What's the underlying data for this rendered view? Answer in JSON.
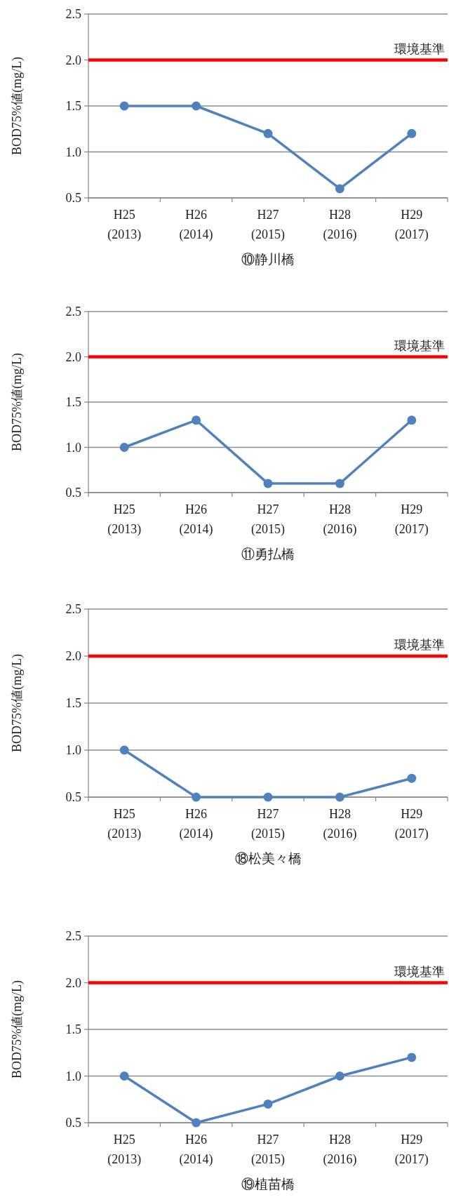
{
  "chart_data": [
    {
      "type": "line",
      "ylabel": "BOD75%値(mg/L)",
      "xlabel": "⑩静川橋",
      "categories": [
        "H25\n(2013)",
        "H26\n(2014)",
        "H27\n(2015)",
        "H28\n(2016)",
        "H29\n(2017)"
      ],
      "series": [
        {
          "color": "#4f81bd",
          "values": [
            1.5,
            1.5,
            1.2,
            0.6,
            1.2
          ]
        }
      ],
      "ylim": [
        0.5,
        2.5
      ],
      "yticks": [
        {
          "value": 0.5,
          "label": "0.5"
        },
        {
          "value": 1,
          "label": "1.0"
        },
        {
          "value": 1.5,
          "label": "1.5"
        },
        {
          "value": 2,
          "label": "2.0"
        },
        {
          "value": 2.5,
          "label": "2.5"
        }
      ],
      "grid": "y",
      "marker": "circle",
      "ref_lines": [
        {
          "axis": "y",
          "value": 2,
          "label": "環境基準",
          "color": "#ff0000"
        }
      ]
    },
    {
      "type": "line",
      "ylabel": "BOD75%値(mg/L)",
      "xlabel": "⑪勇払橋",
      "categories": [
        "H25\n(2013)",
        "H26\n(2014)",
        "H27\n(2015)",
        "H28\n(2016)",
        "H29\n(2017)"
      ],
      "series": [
        {
          "color": "#4f81bd",
          "values": [
            1.0,
            1.3,
            0.6,
            0.6,
            1.3
          ]
        }
      ],
      "ylim": [
        0.5,
        2.5
      ],
      "yticks": [
        {
          "value": 0.5,
          "label": "0.5"
        },
        {
          "value": 1,
          "label": "1.0"
        },
        {
          "value": 1.5,
          "label": "1.5"
        },
        {
          "value": 2,
          "label": "2.0"
        },
        {
          "value": 2.5,
          "label": "2.5"
        }
      ],
      "grid": "y",
      "marker": "circle",
      "ref_lines": [
        {
          "axis": "y",
          "value": 2,
          "label": "環境基準",
          "color": "#ff0000"
        }
      ]
    },
    {
      "type": "line",
      "ylabel": "BOD75%値(mg/L)",
      "xlabel": "⑱松美々橋",
      "categories": [
        "H25\n(2013)",
        "H26\n(2014)",
        "H27\n(2015)",
        "H28\n(2016)",
        "H29\n(2017)"
      ],
      "series": [
        {
          "color": "#4f81bd",
          "values": [
            1.0,
            0.5,
            0.5,
            0.5,
            0.7
          ]
        }
      ],
      "ylim": [
        0.5,
        2.5
      ],
      "yticks": [
        {
          "value": 0.5,
          "label": "0.5"
        },
        {
          "value": 1,
          "label": "1.0"
        },
        {
          "value": 1.5,
          "label": "1.5"
        },
        {
          "value": 2,
          "label": "2.0"
        },
        {
          "value": 2.5,
          "label": "2.5"
        }
      ],
      "grid": "y",
      "marker": "circle",
      "ref_lines": [
        {
          "axis": "y",
          "value": 2,
          "label": "環境基準",
          "color": "#ff0000"
        }
      ]
    },
    {
      "type": "line",
      "ylabel": "BOD75%値(mg/L)",
      "xlabel": "⑲植苗橋",
      "categories": [
        "H25\n(2013)",
        "H26\n(2014)",
        "H27\n(2015)",
        "H28\n(2016)",
        "H29\n(2017)"
      ],
      "series": [
        {
          "color": "#4f81bd",
          "values": [
            1.0,
            0.5,
            0.7,
            1.0,
            1.2
          ]
        }
      ],
      "ylim": [
        0.5,
        2.5
      ],
      "yticks": [
        {
          "value": 0.5,
          "label": "0.5"
        },
        {
          "value": 1,
          "label": "1.0"
        },
        {
          "value": 1.5,
          "label": "1.5"
        },
        {
          "value": 2,
          "label": "2.0"
        },
        {
          "value": 2.5,
          "label": "2.5"
        }
      ],
      "grid": "y",
      "marker": "circle",
      "ref_lines": [
        {
          "axis": "y",
          "value": 2,
          "label": "環境基準",
          "color": "#ff0000"
        }
      ]
    }
  ]
}
